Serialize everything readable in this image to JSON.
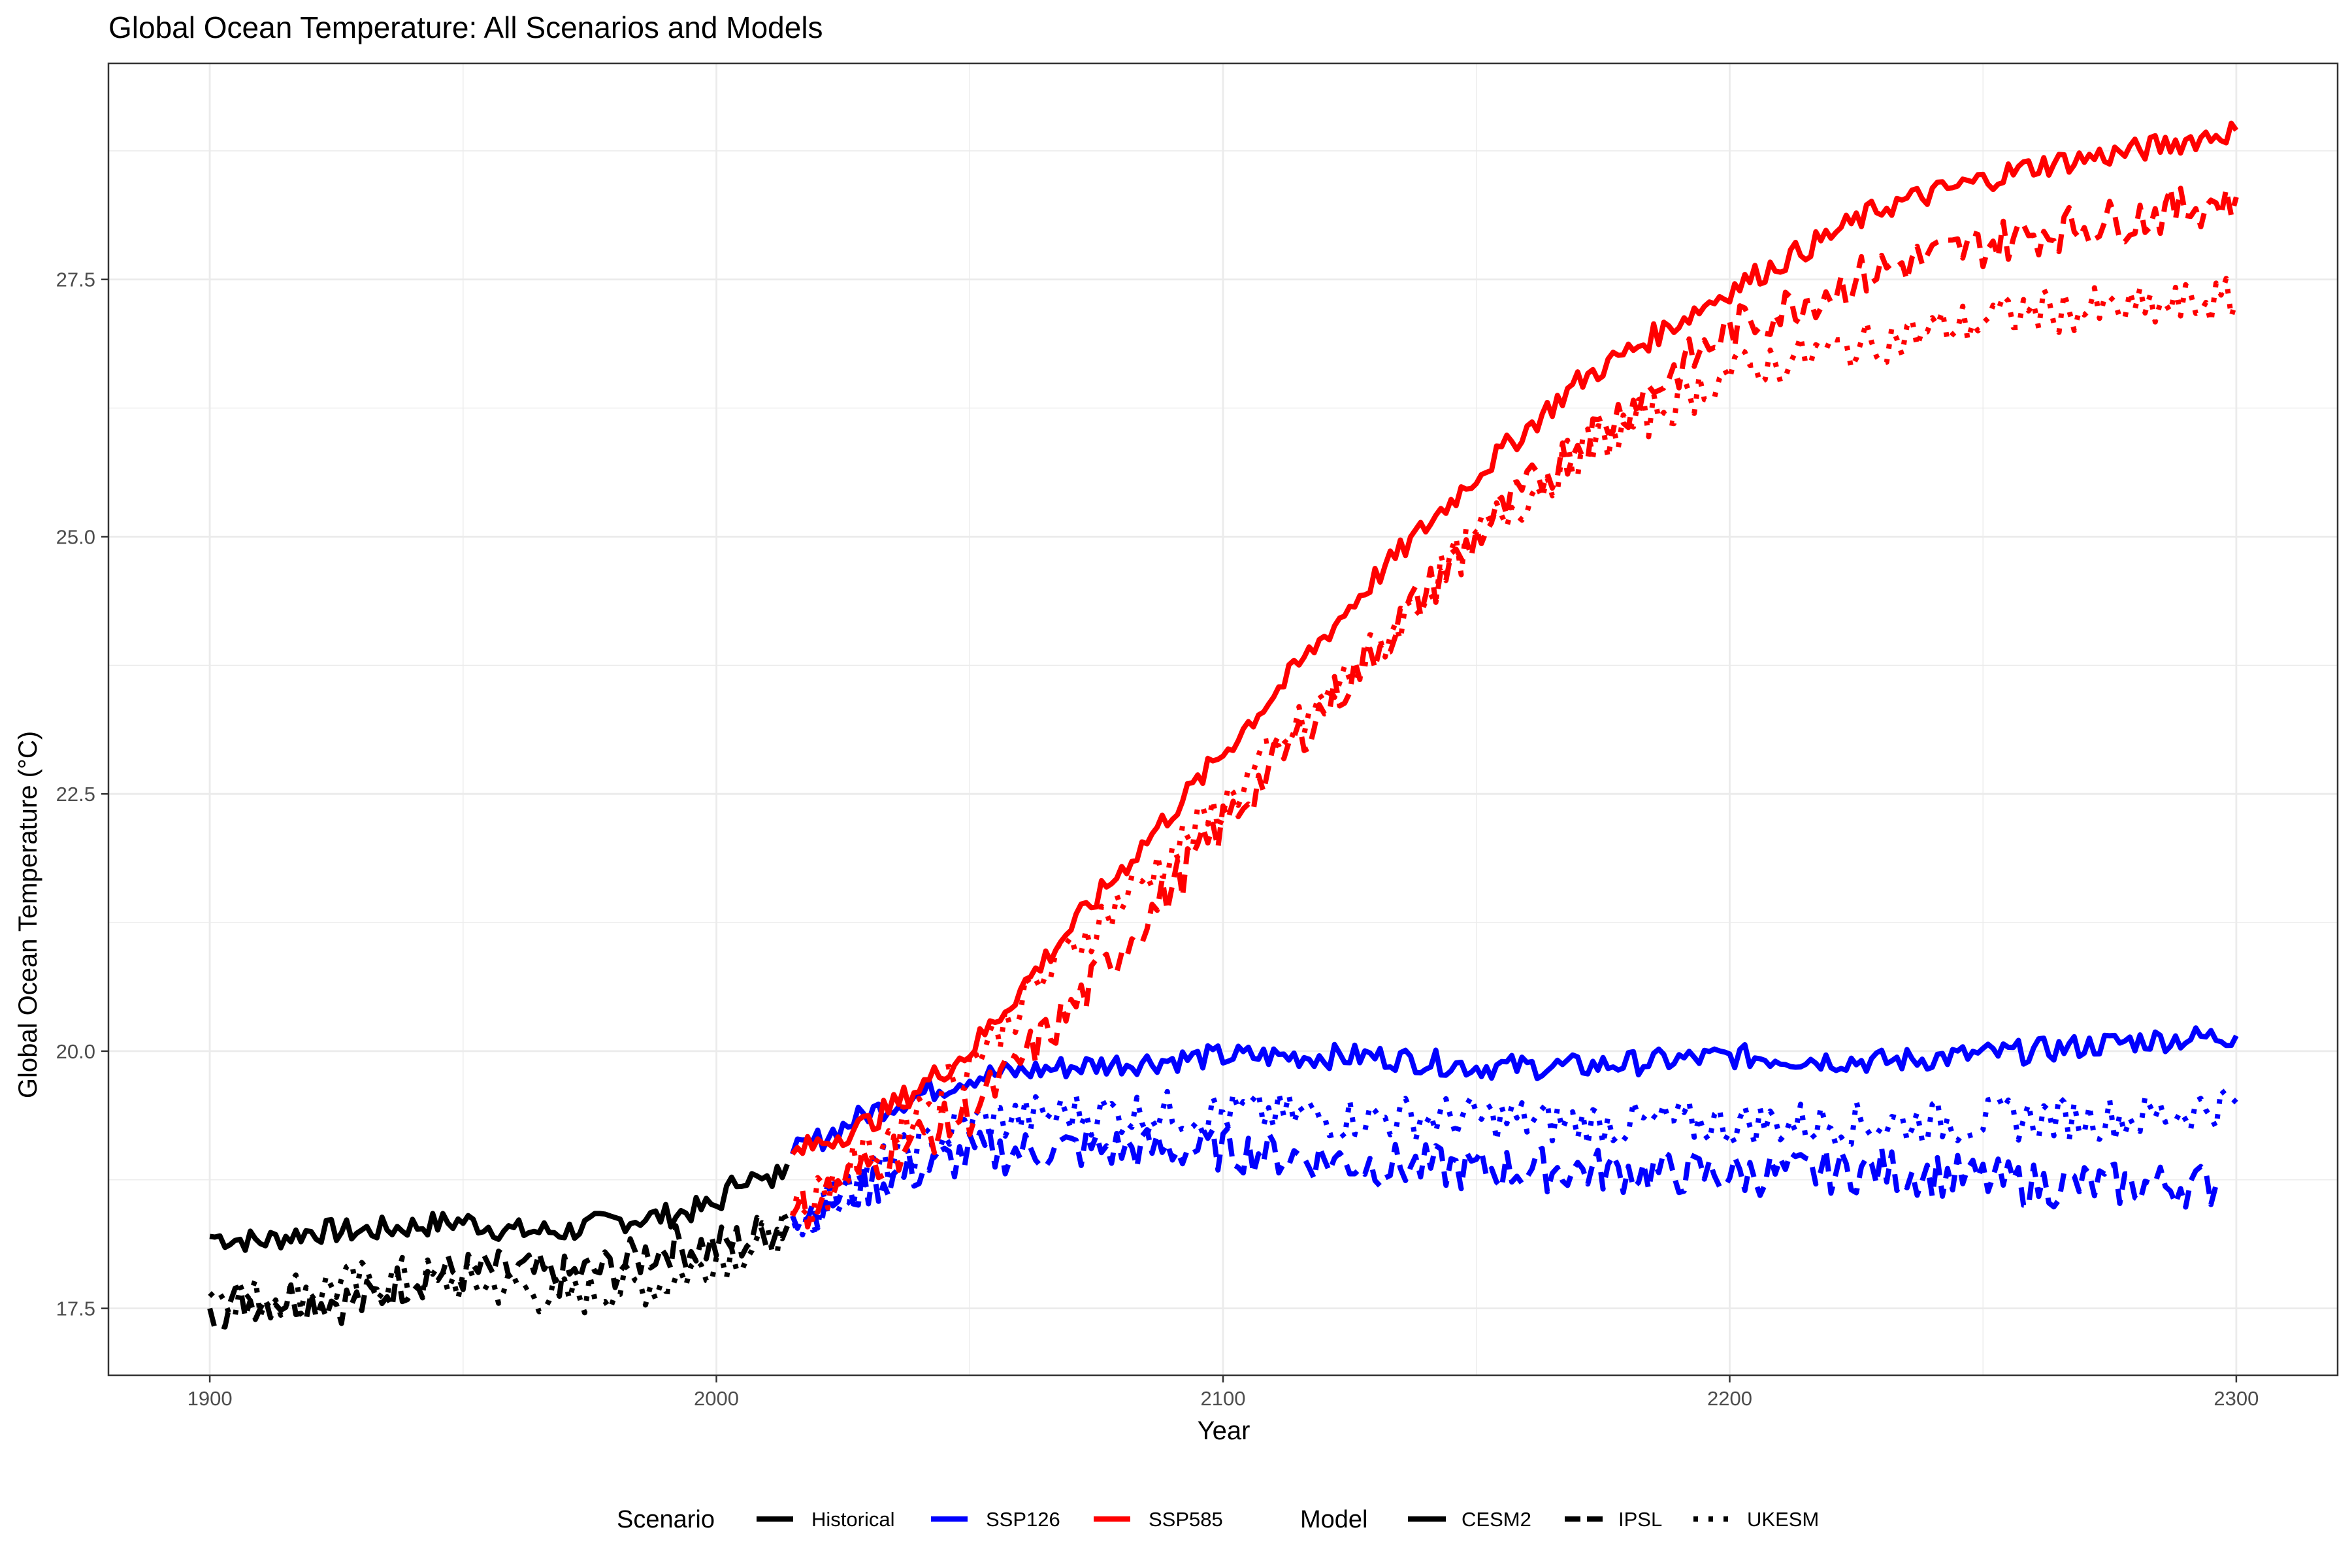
{
  "chart_data": {
    "type": "line",
    "title": "Global Ocean Temperature: All Scenarios and Models",
    "xlabel": "Year",
    "ylabel": "Global Ocean Temperature (°C)",
    "xlim": [
      1880,
      2320
    ],
    "ylim": [
      16.85,
      29.6
    ],
    "xticks": [
      1900,
      2000,
      2100,
      2200,
      2300
    ],
    "yticks": [
      17.5,
      20.0,
      22.5,
      25.0,
      27.5
    ],
    "ytick_labels": [
      "17.5",
      "20.0",
      "22.5",
      "25.0",
      "27.5"
    ],
    "grid": true,
    "legend_position": "bottom",
    "legend": {
      "scenario_title": "Scenario",
      "scenarios": [
        {
          "name": "Historical",
          "color": "#000000"
        },
        {
          "name": "SSP126",
          "color": "#0000ff"
        },
        {
          "name": "SSP585",
          "color": "#ff0000"
        }
      ],
      "model_title": "Model",
      "models": [
        {
          "name": "CESM2",
          "linetype": "solid"
        },
        {
          "name": "IPSL",
          "linetype": "dashed"
        },
        {
          "name": "UKESM",
          "linetype": "dotted"
        }
      ]
    },
    "series": [
      {
        "scenario": "Historical",
        "model": "CESM2",
        "color": "#000000",
        "linetype": "solid",
        "x": [
          1900,
          1910,
          1920,
          1930,
          1940,
          1950,
          1960,
          1970,
          1980,
          1990,
          2000,
          2005,
          2010,
          2014
        ],
        "y": [
          18.2,
          18.15,
          18.25,
          18.25,
          18.3,
          18.35,
          18.25,
          18.25,
          18.35,
          18.4,
          18.5,
          18.8,
          18.7,
          18.9
        ]
      },
      {
        "scenario": "Historical",
        "model": "IPSL",
        "color": "#000000",
        "linetype": "dashed",
        "x": [
          1900,
          1910,
          1920,
          1930,
          1940,
          1950,
          1960,
          1970,
          1980,
          1990,
          2000,
          2005,
          2010,
          2014
        ],
        "y": [
          17.5,
          17.6,
          17.6,
          17.55,
          17.8,
          17.85,
          17.85,
          17.8,
          17.9,
          18.1,
          18.1,
          18.15,
          18.25,
          18.3
        ]
      },
      {
        "scenario": "Historical",
        "model": "UKESM",
        "color": "#000000",
        "linetype": "dotted",
        "x": [
          1900,
          1910,
          1920,
          1930,
          1940,
          1950,
          1960,
          1970,
          1980,
          1990,
          2000,
          2005,
          2010,
          2014
        ],
        "y": [
          17.65,
          17.6,
          17.7,
          17.75,
          17.8,
          17.75,
          17.7,
          17.6,
          17.7,
          17.75,
          18.0,
          18.05,
          18.15,
          18.35
        ]
      },
      {
        "scenario": "SSP126",
        "model": "CESM2",
        "color": "#0000ff",
        "linetype": "solid",
        "x": [
          2015,
          2030,
          2050,
          2070,
          2100,
          2130,
          2150,
          2170,
          2200,
          2230,
          2260,
          2280,
          2300
        ],
        "y": [
          19.0,
          19.4,
          19.75,
          19.85,
          19.95,
          19.95,
          19.85,
          19.85,
          19.95,
          19.9,
          20.0,
          20.1,
          20.15
        ]
      },
      {
        "scenario": "SSP126",
        "model": "IPSL",
        "color": "#0000ff",
        "linetype": "dashed",
        "x": [
          2015,
          2030,
          2050,
          2070,
          2100,
          2130,
          2150,
          2170,
          2200,
          2230,
          2260,
          2280,
          2296
        ],
        "y": [
          18.4,
          18.7,
          19.0,
          19.05,
          19.05,
          18.9,
          18.85,
          18.85,
          18.8,
          18.85,
          18.7,
          18.7,
          18.7
        ]
      },
      {
        "scenario": "SSP126",
        "model": "UKESM",
        "color": "#0000ff",
        "linetype": "dotted",
        "x": [
          2015,
          2030,
          2050,
          2070,
          2100,
          2130,
          2150,
          2170,
          2200,
          2230,
          2260,
          2280,
          2300
        ],
        "y": [
          18.3,
          18.8,
          19.3,
          19.4,
          19.4,
          19.35,
          19.35,
          19.3,
          19.3,
          19.3,
          19.35,
          19.35,
          19.5
        ]
      },
      {
        "scenario": "SSP585",
        "model": "CESM2",
        "color": "#ff0000",
        "linetype": "solid",
        "x": [
          2015,
          2030,
          2050,
          2070,
          2100,
          2130,
          2150,
          2170,
          2200,
          2230,
          2260,
          2280,
          2300
        ],
        "y": [
          19.0,
          19.3,
          20.0,
          21.2,
          22.9,
          24.6,
          25.6,
          26.5,
          27.4,
          28.2,
          28.6,
          28.75,
          28.95
        ]
      },
      {
        "scenario": "SSP585",
        "model": "IPSL",
        "color": "#ff0000",
        "linetype": "dashed",
        "x": [
          2015,
          2030,
          2050,
          2070,
          2100,
          2130,
          2150,
          2170,
          2200,
          2230,
          2260,
          2280,
          2300
        ],
        "y": [
          18.4,
          18.9,
          19.4,
          20.4,
          22.2,
          23.9,
          25.0,
          25.9,
          27.0,
          27.6,
          27.95,
          28.1,
          28.3
        ]
      },
      {
        "scenario": "SSP585",
        "model": "UKESM",
        "color": "#ff0000",
        "linetype": "dotted",
        "x": [
          2015,
          2030,
          2050,
          2070,
          2100,
          2130,
          2150,
          2170,
          2200,
          2230,
          2260,
          2280,
          2300
        ],
        "y": [
          18.4,
          19.0,
          19.9,
          21.0,
          22.4,
          23.9,
          25.0,
          25.8,
          26.6,
          26.9,
          27.2,
          27.2,
          27.3
        ]
      }
    ]
  }
}
